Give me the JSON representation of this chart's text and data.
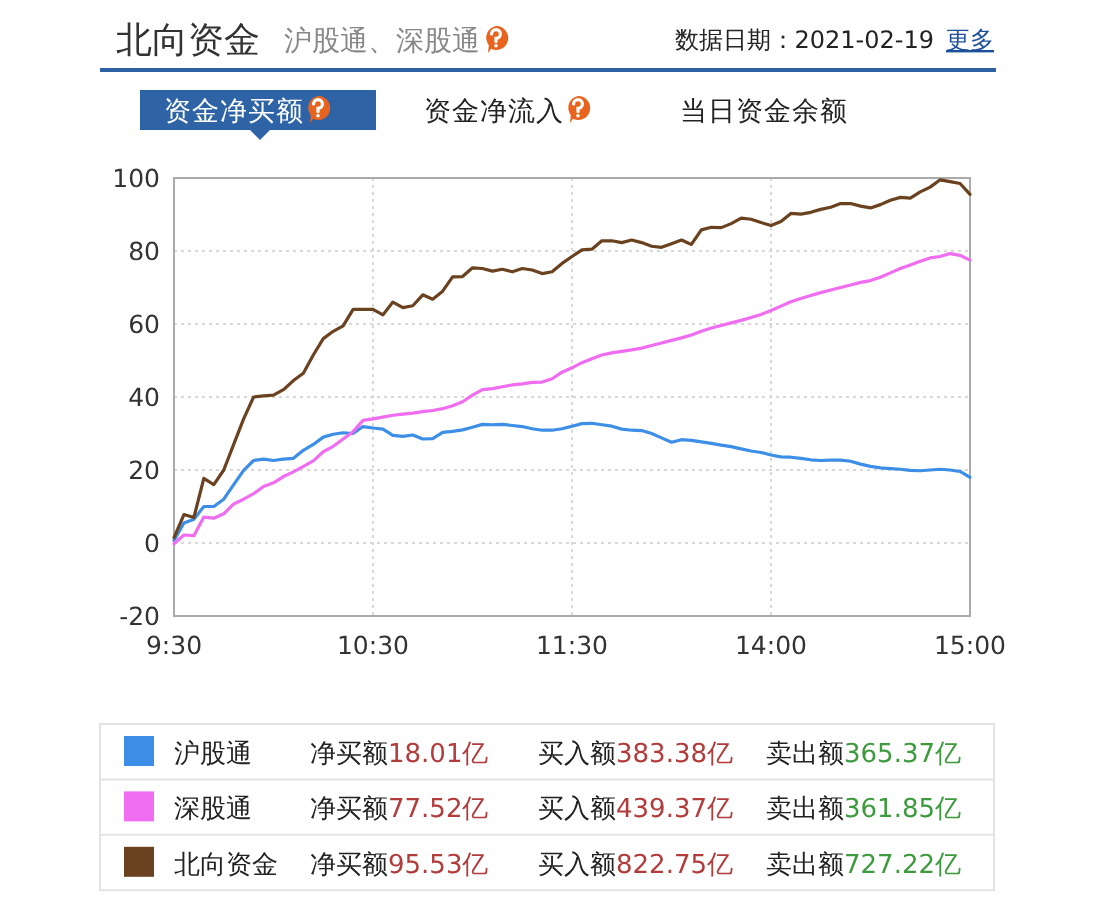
{
  "chart_data": {
    "type": "line",
    "title": "北向资金",
    "subtitle": "沪股通、深股通",
    "annotations": [
      "数据日期：2021-02-19",
      "更多",
      "资金净买额",
      "资金净流入",
      "当日资金余额",
      "净买额18.01亿",
      "买入额383.38亿",
      "卖出额365.37亿",
      "净买额77.52亿",
      "买入额439.37亿",
      "卖出额361.85亿",
      "净买额95.53亿",
      "买入额822.75亿",
      "卖出额727.22亿"
    ],
    "categories": [
      "9:30",
      null,
      null,
      null,
      null,
      null,
      null,
      null,
      null,
      null,
      null,
      null,
      null,
      null,
      null,
      null,
      null,
      null,
      null,
      null,
      "10:30",
      null,
      null,
      null,
      null,
      null,
      null,
      null,
      null,
      null,
      null,
      null,
      null,
      null,
      null,
      null,
      null,
      null,
      null,
      null,
      "11:30",
      null,
      null,
      null,
      null,
      null,
      null,
      null,
      null,
      null,
      null,
      null,
      null,
      null,
      null,
      null,
      null,
      null,
      null,
      null,
      "14:00",
      null,
      null,
      null,
      null,
      null,
      null,
      null,
      null,
      null,
      null,
      null,
      null,
      null,
      null,
      null,
      null,
      null,
      null,
      null,
      "15:00"
    ],
    "ylim": [
      -20,
      100
    ],
    "yticks": [
      -20,
      0,
      20,
      40,
      60,
      80,
      100
    ],
    "grid": true,
    "legend": "bottom",
    "series": [
      {
        "name": "沪股通",
        "color": "#3d8ee6",
        "values": [
          0.7,
          5.5,
          6.5,
          10,
          10,
          12,
          16,
          19.9,
          22.6,
          23,
          22.6,
          23,
          23.2,
          25.4,
          27,
          29,
          29.8,
          30.2,
          30,
          31.9,
          31.5,
          31.2,
          29.5,
          29.2,
          29.6,
          28.5,
          28.6,
          30.3,
          30.6,
          31,
          31.7,
          32.5,
          32.4,
          32.5,
          32.2,
          31.9,
          31.3,
          30.9,
          30.9,
          31.3,
          32,
          32.7,
          32.8,
          32.4,
          32,
          31.2,
          30.9,
          30.8,
          30,
          28.8,
          27.6,
          28.3,
          28.1,
          27.7,
          27.3,
          26.8,
          26.4,
          25.8,
          25.2,
          24.8,
          24.1,
          23.6,
          23.5,
          23.2,
          22.8,
          22.6,
          22.7,
          22.7,
          22.4,
          21.6,
          21,
          20.6,
          20.4,
          20.2,
          19.9,
          19.8,
          20,
          20.2,
          20,
          19.6,
          18
        ]
      },
      {
        "name": "深股通",
        "color": "#f06cf0",
        "values": [
          -0.2,
          2.2,
          2,
          7.1,
          6.8,
          8,
          10.7,
          12,
          13.5,
          15.5,
          16.5,
          18.2,
          19.5,
          21,
          22.5,
          25,
          26.5,
          28.5,
          30.5,
          33.6,
          34,
          34.5,
          35,
          35.3,
          35.6,
          36,
          36.3,
          36.8,
          37.6,
          38.7,
          40.5,
          42,
          42.3,
          42.8,
          43.3,
          43.6,
          44,
          44.1,
          45,
          46.8,
          48,
          49.4,
          50.5,
          51.5,
          52.1,
          52.5,
          52.9,
          53.4,
          54.1,
          54.8,
          55.5,
          56.2,
          57,
          58,
          58.9,
          59.6,
          60.3,
          61,
          61.8,
          62.6,
          63.7,
          64.9,
          66.1,
          67,
          67.8,
          68.6,
          69.3,
          70,
          70.7,
          71.4,
          71.9,
          72.8,
          74,
          75.2,
          76.2,
          77.2,
          78.1,
          78.5,
          79.3,
          78.8,
          77.5
        ]
      },
      {
        "name": "北向资金",
        "color": "#6b4220",
        "values": [
          1.5,
          7.8,
          7,
          17.7,
          16,
          20,
          27,
          34,
          40,
          40.3,
          40.5,
          42,
          44.5,
          46.5,
          51.5,
          56,
          58,
          59.5,
          64,
          64,
          64,
          62.5,
          66,
          64.5,
          65,
          68,
          66.8,
          69,
          72.9,
          73,
          75.4,
          75.2,
          74.5,
          75,
          74.3,
          75.2,
          74.8,
          73.8,
          74.3,
          76.6,
          78.5,
          80.3,
          80.5,
          82.8,
          82.8,
          82.3,
          83,
          82.3,
          81.3,
          81,
          82,
          83,
          81.8,
          85.8,
          86.5,
          86.4,
          87.5,
          89,
          88.7,
          87.8,
          87,
          88.1,
          90.3,
          90.1,
          90.6,
          91.4,
          92,
          93,
          93,
          92.3,
          91.8,
          92.7,
          93.9,
          94.7,
          94.5,
          96.2,
          97.5,
          99.5,
          99,
          98.5,
          95.5
        ]
      }
    ]
  }
}
